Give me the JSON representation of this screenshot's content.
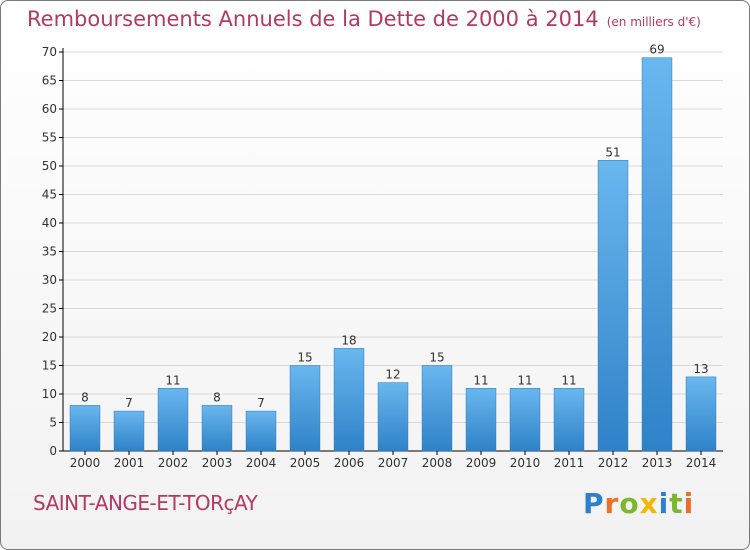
{
  "title": "Remboursements Annuels de la Dette de 2000 à 2014",
  "unit_note": "(en milliers d'€)",
  "town": "SAINT-ANGE-ET-TORçAY",
  "logo": {
    "text": "Proxiti",
    "letter_colors": [
      "#2f7fd0",
      "#ef6f28",
      "#7bb82f",
      "#f4b800",
      "#2f7fd0",
      "#7bb82f",
      "#ef6f28"
    ]
  },
  "colors": {
    "bar_light": "#6ab7ef",
    "bar_dark": "#2f82c8",
    "grid": "#d9d9d9",
    "axis": "#000000"
  },
  "chart_data": {
    "type": "bar",
    "categories": [
      "2000",
      "2001",
      "2002",
      "2003",
      "2004",
      "2005",
      "2006",
      "2007",
      "2008",
      "2009",
      "2010",
      "2011",
      "2012",
      "2013",
      "2014"
    ],
    "values": [
      8,
      7,
      11,
      8,
      7,
      15,
      18,
      12,
      15,
      11,
      11,
      11,
      51,
      69,
      13
    ],
    "ylim": [
      0,
      70
    ],
    "yticks": [
      0,
      5,
      10,
      15,
      20,
      25,
      30,
      35,
      40,
      45,
      50,
      55,
      60,
      65,
      70
    ],
    "grid": true,
    "data_labels": true
  }
}
